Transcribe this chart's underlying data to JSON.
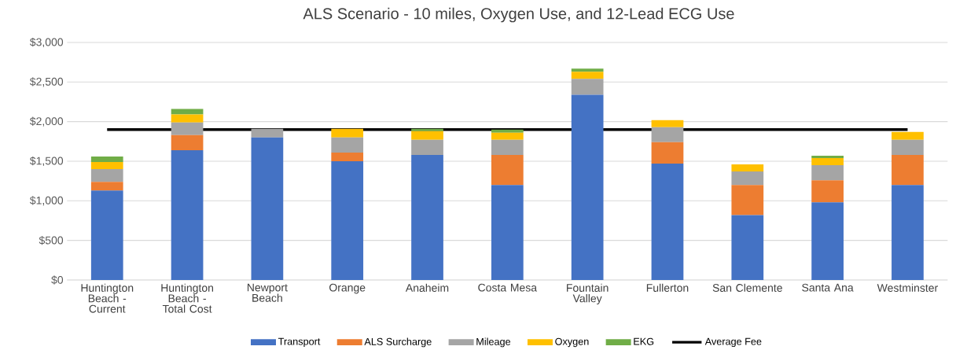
{
  "chart_data": {
    "type": "bar",
    "stacked": true,
    "title": "ALS Scenario - 10 miles, Oxygen Use, and 12-Lead ECG Use",
    "categories": [
      "Huntington Beach - Current",
      "Huntington Beach - Total Cost",
      "Newport Beach",
      "Orange",
      "Anaheim",
      "Costa Mesa",
      "Fountain Valley",
      "Fullerton",
      "San Clemente",
      "Santa Ana",
      "Westminster"
    ],
    "series": [
      {
        "name": "Transport",
        "color": "#4472c4",
        "values": [
          1130,
          1640,
          1800,
          1500,
          1580,
          1200,
          2340,
          1470,
          820,
          980,
          1200
        ]
      },
      {
        "name": "ALS Surcharge",
        "color": "#ed7d31",
        "values": [
          110,
          190,
          0,
          110,
          0,
          380,
          0,
          270,
          380,
          280,
          380
        ]
      },
      {
        "name": "Mileage",
        "color": "#a5a5a5",
        "values": [
          160,
          160,
          110,
          190,
          190,
          190,
          200,
          190,
          170,
          190,
          190
        ]
      },
      {
        "name": "Oxygen",
        "color": "#ffc000",
        "values": [
          90,
          100,
          0,
          110,
          110,
          90,
          90,
          90,
          90,
          90,
          100
        ]
      },
      {
        "name": "EKG",
        "color": "#70ad47",
        "values": [
          70,
          70,
          0,
          0,
          30,
          40,
          40,
          0,
          0,
          30,
          0
        ]
      }
    ],
    "ref_lines": [
      {
        "axis": "y",
        "value": 1900,
        "label": "Average Fee",
        "color": "#000000"
      }
    ],
    "ylim": [
      0,
      3000
    ],
    "yticks": [
      {
        "value": 0,
        "label": "$0"
      },
      {
        "value": 500,
        "label": "$500"
      },
      {
        "value": 1000,
        "label": "$1,000"
      },
      {
        "value": 1500,
        "label": "$1,500"
      },
      {
        "value": 2000,
        "label": "$2,000"
      },
      {
        "value": 2500,
        "label": "$2,500"
      },
      {
        "value": 3000,
        "label": "$3,000"
      }
    ],
    "grid": "y",
    "legend": "bottom"
  }
}
